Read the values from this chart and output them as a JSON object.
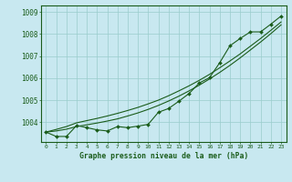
{
  "bg_color": "#c8e8f0",
  "grid_color": "#99cccc",
  "line_color": "#1a5c1a",
  "title": "Graphe pression niveau de la mer (hPa)",
  "xlim": [
    -0.5,
    23.5
  ],
  "ylim": [
    1003.1,
    1009.3
  ],
  "yticks": [
    1004,
    1005,
    1006,
    1007,
    1008,
    1009
  ],
  "xticks": [
    0,
    1,
    2,
    3,
    4,
    5,
    6,
    7,
    8,
    9,
    10,
    11,
    12,
    13,
    14,
    15,
    16,
    17,
    18,
    19,
    20,
    21,
    22,
    23
  ],
  "main_data": [
    1003.55,
    1003.35,
    1003.35,
    1003.85,
    1003.75,
    1003.65,
    1003.6,
    1003.8,
    1003.75,
    1003.82,
    1003.9,
    1004.45,
    1004.62,
    1004.95,
    1005.3,
    1005.78,
    1006.02,
    1006.7,
    1007.47,
    1007.8,
    1008.1,
    1008.1,
    1008.45,
    1008.82
  ],
  "trend1": [
    1003.55,
    1003.6,
    1003.68,
    1003.8,
    1003.88,
    1003.96,
    1004.05,
    1004.15,
    1004.28,
    1004.42,
    1004.58,
    1004.76,
    1004.96,
    1005.18,
    1005.42,
    1005.68,
    1005.96,
    1006.26,
    1006.58,
    1006.92,
    1007.28,
    1007.64,
    1008.02,
    1008.42
  ],
  "trend2": [
    1003.55,
    1003.67,
    1003.8,
    1003.97,
    1004.07,
    1004.17,
    1004.28,
    1004.4,
    1004.53,
    1004.67,
    1004.83,
    1005.0,
    1005.2,
    1005.42,
    1005.65,
    1005.9,
    1006.17,
    1006.47,
    1006.78,
    1007.1,
    1007.45,
    1007.8,
    1008.17,
    1008.55
  ]
}
